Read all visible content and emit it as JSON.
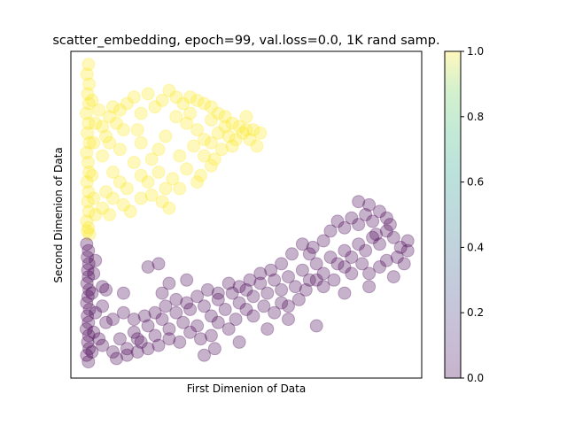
{
  "chart_data": {
    "type": "scatter",
    "title": "scatter_embedding, epoch=99, val.loss=0.0, 1K rand samp.",
    "xlabel": "First Dimenion of Data",
    "ylabel": "Second Dimenion of Data",
    "xlim": [
      0,
      1
    ],
    "ylim": [
      0,
      1
    ],
    "x_ticks_visible": false,
    "y_ticks_visible": false,
    "grid": false,
    "colormap": "viridis",
    "marker_alpha": 0.3,
    "colorbar": {
      "range": [
        0.0,
        1.0
      ],
      "tick_labels": [
        "0.0",
        "0.2",
        "0.4",
        "0.6",
        "0.8",
        "1.0"
      ],
      "low_color": "#440154",
      "high_color": "#fde725"
    },
    "series": [
      {
        "value": 1.0,
        "color": "#fde725",
        "points": [
          [
            0.05,
            0.96
          ],
          [
            0.046,
            0.93
          ],
          [
            0.052,
            0.9
          ],
          [
            0.048,
            0.87
          ],
          [
            0.051,
            0.84
          ],
          [
            0.044,
            0.81
          ],
          [
            0.05,
            0.78
          ],
          [
            0.047,
            0.75
          ],
          [
            0.053,
            0.72
          ],
          [
            0.045,
            0.69
          ],
          [
            0.049,
            0.66
          ],
          [
            0.052,
            0.63
          ],
          [
            0.046,
            0.6
          ],
          [
            0.05,
            0.57
          ],
          [
            0.048,
            0.54
          ],
          [
            0.051,
            0.51
          ],
          [
            0.045,
            0.48
          ],
          [
            0.05,
            0.46
          ],
          [
            0.047,
            0.45
          ],
          [
            0.053,
            0.44
          ],
          [
            0.06,
            0.85
          ],
          [
            0.07,
            0.78
          ],
          [
            0.065,
            0.72
          ],
          [
            0.06,
            0.62
          ],
          [
            0.065,
            0.55
          ],
          [
            0.07,
            0.5
          ],
          [
            0.08,
            0.82
          ],
          [
            0.09,
            0.77
          ],
          [
            0.1,
            0.74
          ],
          [
            0.11,
            0.8
          ],
          [
            0.12,
            0.83
          ],
          [
            0.13,
            0.78
          ],
          [
            0.14,
            0.82
          ],
          [
            0.15,
            0.76
          ],
          [
            0.16,
            0.84
          ],
          [
            0.18,
            0.86
          ],
          [
            0.2,
            0.81
          ],
          [
            0.22,
            0.87
          ],
          [
            0.24,
            0.83
          ],
          [
            0.26,
            0.85
          ],
          [
            0.28,
            0.88
          ],
          [
            0.3,
            0.86
          ],
          [
            0.32,
            0.84
          ],
          [
            0.34,
            0.86
          ],
          [
            0.36,
            0.85
          ],
          [
            0.38,
            0.84
          ],
          [
            0.4,
            0.83
          ],
          [
            0.42,
            0.81
          ],
          [
            0.44,
            0.8
          ],
          [
            0.46,
            0.78
          ],
          [
            0.48,
            0.77
          ],
          [
            0.5,
            0.76
          ],
          [
            0.52,
            0.76
          ],
          [
            0.3,
            0.8
          ],
          [
            0.33,
            0.78
          ],
          [
            0.36,
            0.76
          ],
          [
            0.38,
            0.73
          ],
          [
            0.4,
            0.79
          ],
          [
            0.42,
            0.75
          ],
          [
            0.44,
            0.77
          ],
          [
            0.47,
            0.73
          ],
          [
            0.49,
            0.75
          ],
          [
            0.51,
            0.73
          ],
          [
            0.35,
            0.71
          ],
          [
            0.38,
            0.68
          ],
          [
            0.4,
            0.72
          ],
          [
            0.43,
            0.7
          ],
          [
            0.45,
            0.74
          ],
          [
            0.27,
            0.74
          ],
          [
            0.25,
            0.7
          ],
          [
            0.23,
            0.67
          ],
          [
            0.2,
            0.72
          ],
          [
            0.18,
            0.66
          ],
          [
            0.2,
            0.62
          ],
          [
            0.22,
            0.6
          ],
          [
            0.25,
            0.63
          ],
          [
            0.27,
            0.58
          ],
          [
            0.29,
            0.61
          ],
          [
            0.31,
            0.58
          ],
          [
            0.16,
            0.58
          ],
          [
            0.14,
            0.6
          ],
          [
            0.12,
            0.55
          ],
          [
            0.1,
            0.57
          ],
          [
            0.15,
            0.53
          ],
          [
            0.17,
            0.51
          ],
          [
            0.2,
            0.55
          ],
          [
            0.23,
            0.56
          ],
          [
            0.26,
            0.54
          ],
          [
            0.28,
            0.52
          ],
          [
            0.12,
            0.63
          ],
          [
            0.09,
            0.68
          ],
          [
            0.11,
            0.72
          ],
          [
            0.14,
            0.7
          ],
          [
            0.33,
            0.64
          ],
          [
            0.37,
            0.62
          ],
          [
            0.4,
            0.65
          ],
          [
            0.36,
            0.6
          ],
          [
            0.09,
            0.52
          ],
          [
            0.11,
            0.5
          ],
          [
            0.19,
            0.76
          ],
          [
            0.31,
            0.68
          ],
          [
            0.34,
            0.81
          ],
          [
            0.41,
            0.67
          ],
          [
            0.46,
            0.71
          ],
          [
            0.5,
            0.8
          ],
          [
            0.54,
            0.75
          ],
          [
            0.53,
            0.71
          ]
        ]
      },
      {
        "value": 0.0,
        "color": "#440154",
        "points": [
          [
            0.05,
            0.05
          ],
          [
            0.045,
            0.07
          ],
          [
            0.052,
            0.09
          ],
          [
            0.048,
            0.11
          ],
          [
            0.051,
            0.13
          ],
          [
            0.044,
            0.15
          ],
          [
            0.05,
            0.17
          ],
          [
            0.047,
            0.19
          ],
          [
            0.053,
            0.21
          ],
          [
            0.045,
            0.23
          ],
          [
            0.049,
            0.25
          ],
          [
            0.052,
            0.27
          ],
          [
            0.046,
            0.29
          ],
          [
            0.05,
            0.31
          ],
          [
            0.048,
            0.33
          ],
          [
            0.051,
            0.35
          ],
          [
            0.047,
            0.37
          ],
          [
            0.05,
            0.39
          ],
          [
            0.045,
            0.41
          ],
          [
            0.06,
            0.08
          ],
          [
            0.065,
            0.14
          ],
          [
            0.07,
            0.2
          ],
          [
            0.06,
            0.26
          ],
          [
            0.065,
            0.32
          ],
          [
            0.07,
            0.36
          ],
          [
            0.08,
            0.12
          ],
          [
            0.09,
            0.1
          ],
          [
            0.1,
            0.17
          ],
          [
            0.1,
            0.27
          ],
          [
            0.09,
            0.22
          ],
          [
            0.12,
            0.08
          ],
          [
            0.14,
            0.12
          ],
          [
            0.16,
            0.09
          ],
          [
            0.18,
            0.14
          ],
          [
            0.2,
            0.11
          ],
          [
            0.22,
            0.16
          ],
          [
            0.24,
            0.13
          ],
          [
            0.26,
            0.18
          ],
          [
            0.28,
            0.15
          ],
          [
            0.3,
            0.2
          ],
          [
            0.32,
            0.17
          ],
          [
            0.34,
            0.21
          ],
          [
            0.36,
            0.16
          ],
          [
            0.38,
            0.22
          ],
          [
            0.4,
            0.19
          ],
          [
            0.42,
            0.24
          ],
          [
            0.44,
            0.21
          ],
          [
            0.46,
            0.26
          ],
          [
            0.48,
            0.23
          ],
          [
            0.5,
            0.27
          ],
          [
            0.52,
            0.25
          ],
          [
            0.54,
            0.29
          ],
          [
            0.56,
            0.26
          ],
          [
            0.58,
            0.3
          ],
          [
            0.6,
            0.27
          ],
          [
            0.62,
            0.31
          ],
          [
            0.64,
            0.28
          ],
          [
            0.66,
            0.33
          ],
          [
            0.68,
            0.3
          ],
          [
            0.7,
            0.35
          ],
          [
            0.72,
            0.32
          ],
          [
            0.74,
            0.37
          ],
          [
            0.76,
            0.35
          ],
          [
            0.78,
            0.39
          ],
          [
            0.8,
            0.37
          ],
          [
            0.82,
            0.41
          ],
          [
            0.84,
            0.39
          ],
          [
            0.86,
            0.43
          ],
          [
            0.88,
            0.41
          ],
          [
            0.9,
            0.45
          ],
          [
            0.92,
            0.43
          ],
          [
            0.94,
            0.4
          ],
          [
            0.96,
            0.39
          ],
          [
            0.93,
            0.37
          ],
          [
            0.95,
            0.35
          ],
          [
            0.9,
            0.36
          ],
          [
            0.88,
            0.34
          ],
          [
            0.85,
            0.32
          ],
          [
            0.83,
            0.35
          ],
          [
            0.8,
            0.32
          ],
          [
            0.78,
            0.34
          ],
          [
            0.75,
            0.3
          ],
          [
            0.72,
            0.28
          ],
          [
            0.7,
            0.3
          ],
          [
            0.67,
            0.27
          ],
          [
            0.65,
            0.24
          ],
          [
            0.62,
            0.22
          ],
          [
            0.6,
            0.23
          ],
          [
            0.58,
            0.2
          ],
          [
            0.55,
            0.22
          ],
          [
            0.52,
            0.19
          ],
          [
            0.5,
            0.21
          ],
          [
            0.47,
            0.18
          ],
          [
            0.45,
            0.15
          ],
          [
            0.42,
            0.17
          ],
          [
            0.4,
            0.13
          ],
          [
            0.37,
            0.12
          ],
          [
            0.34,
            0.14
          ],
          [
            0.31,
            0.11
          ],
          [
            0.28,
            0.12
          ],
          [
            0.25,
            0.1
          ],
          [
            0.22,
            0.09
          ],
          [
            0.19,
            0.08
          ],
          [
            0.16,
            0.07
          ],
          [
            0.13,
            0.06
          ],
          [
            0.74,
            0.45
          ],
          [
            0.76,
            0.48
          ],
          [
            0.78,
            0.46
          ],
          [
            0.8,
            0.49
          ],
          [
            0.82,
            0.47
          ],
          [
            0.84,
            0.5
          ],
          [
            0.86,
            0.48
          ],
          [
            0.88,
            0.51
          ],
          [
            0.9,
            0.49
          ],
          [
            0.85,
            0.53
          ],
          [
            0.82,
            0.54
          ],
          [
            0.87,
            0.44
          ],
          [
            0.91,
            0.47
          ],
          [
            0.72,
            0.42
          ],
          [
            0.69,
            0.4
          ],
          [
            0.66,
            0.41
          ],
          [
            0.63,
            0.38
          ],
          [
            0.6,
            0.35
          ],
          [
            0.57,
            0.33
          ],
          [
            0.54,
            0.32
          ],
          [
            0.51,
            0.3
          ],
          [
            0.48,
            0.28
          ],
          [
            0.45,
            0.29
          ],
          [
            0.42,
            0.26
          ],
          [
            0.39,
            0.27
          ],
          [
            0.36,
            0.25
          ],
          [
            0.33,
            0.23
          ],
          [
            0.3,
            0.24
          ],
          [
            0.27,
            0.22
          ],
          [
            0.24,
            0.2
          ],
          [
            0.21,
            0.19
          ],
          [
            0.18,
            0.18
          ],
          [
            0.15,
            0.2
          ],
          [
            0.12,
            0.18
          ],
          [
            0.22,
            0.34
          ],
          [
            0.25,
            0.35
          ],
          [
            0.28,
            0.29
          ],
          [
            0.41,
            0.09
          ],
          [
            0.38,
            0.07
          ],
          [
            0.15,
            0.26
          ],
          [
            0.09,
            0.28
          ],
          [
            0.62,
            0.18
          ],
          [
            0.7,
            0.16
          ],
          [
            0.78,
            0.26
          ],
          [
            0.85,
            0.28
          ],
          [
            0.92,
            0.31
          ],
          [
            0.96,
            0.42
          ],
          [
            0.68,
            0.38
          ],
          [
            0.56,
            0.15
          ],
          [
            0.48,
            0.11
          ],
          [
            0.33,
            0.3
          ],
          [
            0.26,
            0.26
          ],
          [
            0.19,
            0.12
          ]
        ]
      }
    ]
  }
}
